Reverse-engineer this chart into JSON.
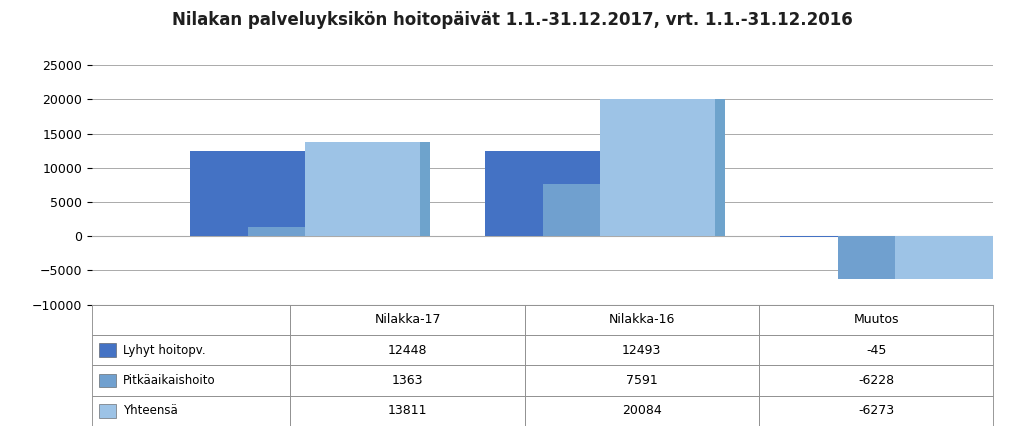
{
  "title": "Nilakan palveluyksikön hoitopäivät 1.1.-31.12.2017, vrt. 1.1.-31.12.2016",
  "groups": [
    "Nilakka-17",
    "Nilakka-16",
    "Muutos"
  ],
  "series": [
    {
      "label": "Lyhyt hoitopv.",
      "color": "#4472C4",
      "shadow_color": "#2E5496",
      "values": [
        12448,
        12493,
        -45
      ]
    },
    {
      "label": "Pitkäaikaishoito",
      "color": "#70A0CF",
      "shadow_color": "#4E7BAA",
      "values": [
        1363,
        7591,
        -6228
      ]
    },
    {
      "label": "Yhteensä",
      "color": "#9DC3E6",
      "shadow_color": "#6EA3CC",
      "values": [
        13811,
        20084,
        -6273
      ]
    }
  ],
  "ylim": [
    -10000,
    28000
  ],
  "yticks": [
    -10000,
    -5000,
    0,
    5000,
    10000,
    15000,
    20000,
    25000
  ],
  "background_color": "#FFFFFF",
  "title_fontsize": 12,
  "bar_width": 0.28,
  "group_positions": [
    0.28,
    1.0,
    1.72
  ],
  "xlim": [
    -0.1,
    2.1
  ]
}
